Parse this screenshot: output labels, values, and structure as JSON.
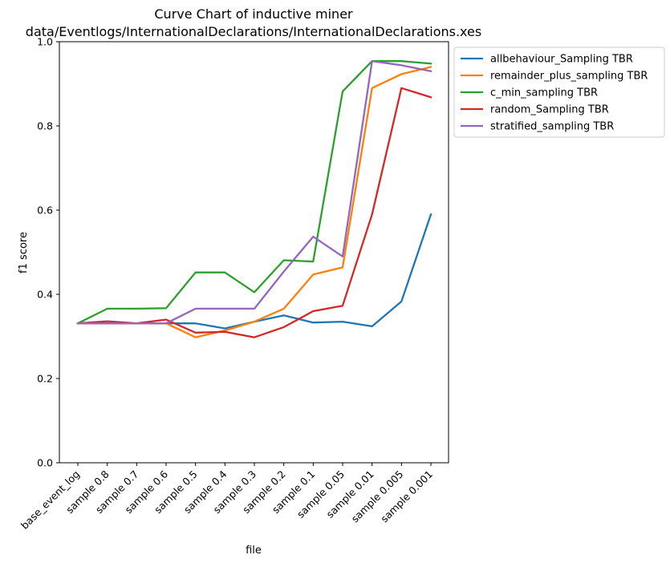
{
  "chart_data": {
    "type": "line",
    "title_line1": "Curve Chart of inductive miner",
    "title_line2": "data/Eventlogs/InternationalDeclarations/InternationalDeclarations.xes",
    "xlabel": "file",
    "ylabel": "f1 score",
    "ylim": [
      0.0,
      1.0
    ],
    "yticks": [
      "0.0",
      "0.2",
      "0.4",
      "0.6",
      "0.8",
      "1.0"
    ],
    "categories": [
      "base_event_log",
      "sample 0.8",
      "sample 0.7",
      "sample 0.6",
      "sample 0.5",
      "sample 0.4",
      "sample 0.3",
      "sample 0.2",
      "sample 0.1",
      "sample 0.05",
      "sample 0.01",
      "sample 0.005",
      "sample 0.001"
    ],
    "grid": false,
    "legend_position": "outside-top-right",
    "series": [
      {
        "name": "allbehaviour_Sampling TBR",
        "color": "#1f77b4",
        "values": [
          0.331,
          0.331,
          0.331,
          0.331,
          0.331,
          0.319,
          0.335,
          0.35,
          0.333,
          0.335,
          0.324,
          0.383,
          0.59
        ]
      },
      {
        "name": "remainder_plus_sampling TBR",
        "color": "#ff7f0e",
        "values": [
          0.331,
          0.331,
          0.331,
          0.331,
          0.298,
          0.314,
          0.335,
          0.366,
          0.447,
          0.464,
          0.89,
          0.923,
          0.94
        ]
      },
      {
        "name": "c_min_sampling TBR",
        "color": "#2ca02c",
        "values": [
          0.331,
          0.366,
          0.366,
          0.367,
          0.452,
          0.452,
          0.405,
          0.481,
          0.478,
          0.882,
          0.954,
          0.954,
          0.948
        ]
      },
      {
        "name": "random_Sampling TBR",
        "color": "#d62728",
        "values": [
          0.331,
          0.336,
          0.331,
          0.34,
          0.309,
          0.311,
          0.298,
          0.322,
          0.36,
          0.373,
          0.59,
          0.89,
          0.868
        ]
      },
      {
        "name": "stratified_sampling TBR",
        "color": "#9467bd",
        "values": [
          0.331,
          0.331,
          0.331,
          0.331,
          0.366,
          0.366,
          0.366,
          0.454,
          0.537,
          0.49,
          0.954,
          0.944,
          0.93
        ]
      }
    ]
  }
}
